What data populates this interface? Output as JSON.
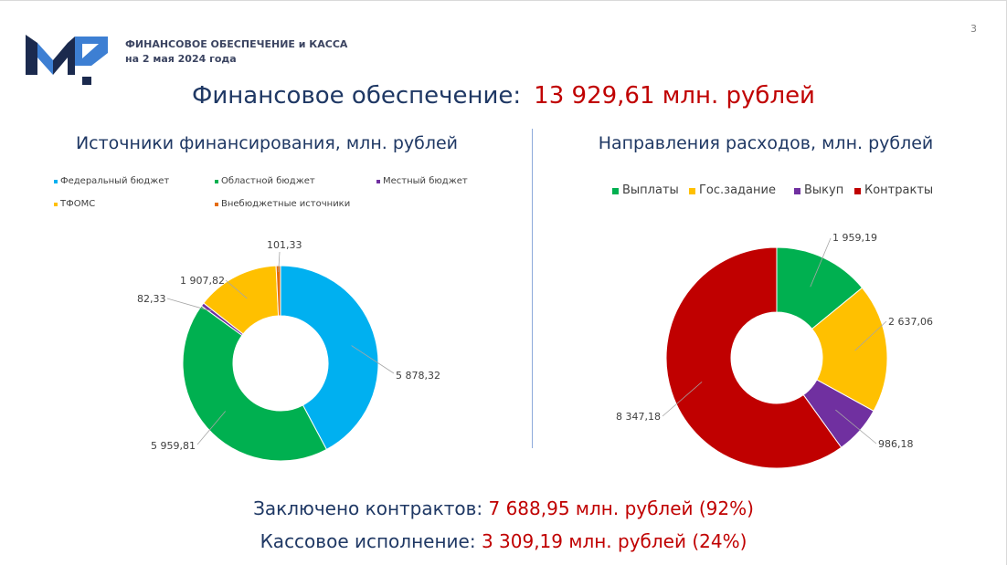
{
  "slide": {
    "page_number": "3",
    "header_line1": "ФИНАНСОВОЕ ОБЕСПЕЧЕНИЕ и КАССА",
    "header_line2": "на 2 мая 2024 года",
    "title_label": "Финансовое обеспечение:",
    "title_value": "13 929,61 млн. рублей",
    "contracts_label": "Заключено контрактов:",
    "contracts_value": "7 688,95 млн. рублей (92%)",
    "cash_label": "Кассовое исполнение:",
    "cash_value": "3 309,19 млн. рублей (24%)"
  },
  "theme": {
    "title_navy": "#1F3864",
    "accent_red": "#C00000",
    "label_gray": "#404040",
    "divider": "#8EAADB",
    "header": "#3B4461"
  },
  "logo": {
    "icon": "logo-icon"
  },
  "chart_data": [
    {
      "type": "pie",
      "subtype": "donut",
      "title": "Источники финансирования, млн. рублей",
      "categories": [
        "Федеральный бюджет",
        "Областной бюджет",
        "Местный бюджет",
        "ТФОМС",
        "Внебюджетные источники"
      ],
      "values": [
        5878.32,
        5959.81,
        82.33,
        1907.82,
        101.33
      ],
      "data_labels": [
        "5 878,32",
        "5 959,81",
        "82,33",
        "1 907,82",
        "101,33"
      ],
      "colors": [
        "#00B0F0",
        "#00B050",
        "#7030A0",
        "#FFC000",
        "#E46C0A"
      ],
      "legend_position": "top"
    },
    {
      "type": "pie",
      "subtype": "donut",
      "title": "Направления расходов, млн. рублей",
      "categories": [
        "Выплаты",
        "Гос.задание",
        "Выкуп",
        "Контракты"
      ],
      "values": [
        1959.19,
        2637.06,
        986.18,
        8347.18
      ],
      "data_labels": [
        "1 959,19",
        "2 637,06",
        "986,18",
        "8 347,18"
      ],
      "colors": [
        "#00B050",
        "#FFC000",
        "#7030A0",
        "#C00000"
      ],
      "legend_position": "top"
    }
  ]
}
